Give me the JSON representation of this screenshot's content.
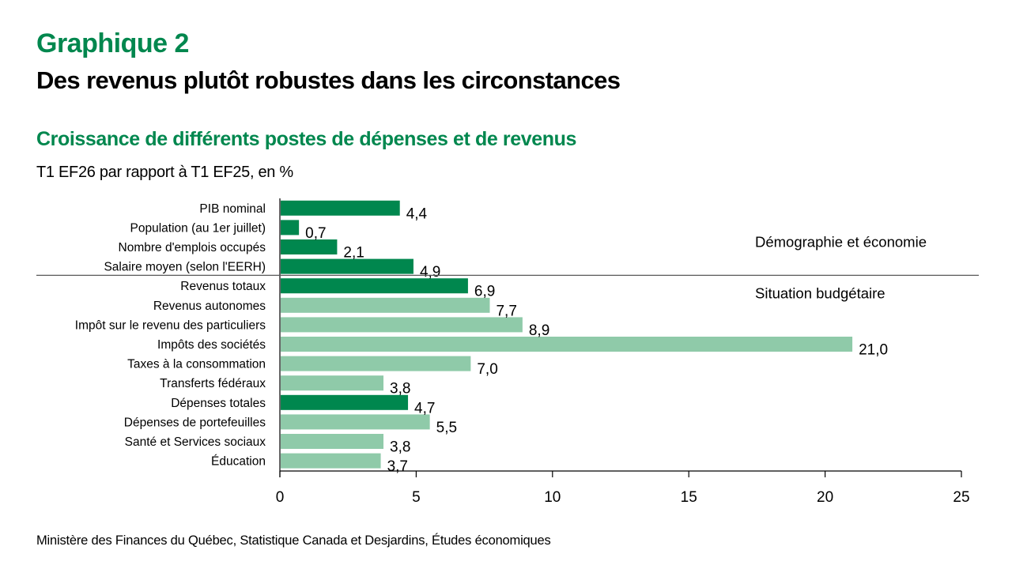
{
  "header": {
    "figure_label": "Graphique 2",
    "headline": "Des revenus plutôt robustes dans les circonstances"
  },
  "source": "Ministère des Finances du Québec, Statistique Canada et Desjardins, Études économiques",
  "colors": {
    "brand_green": "#00874e",
    "dark_bar": "#00874e",
    "light_bar": "#8fcaa9",
    "separator": "#595959",
    "axis": "#000000"
  },
  "chart_data": {
    "type": "bar",
    "orientation": "horizontal",
    "title": "Croissance de différents postes de dépenses et de revenus",
    "subtitle": "T1 EF26 par rapport à T1 EF25, en %",
    "xlabel": "",
    "ylabel": "",
    "xlim": [
      0,
      25
    ],
    "xticks": [
      0,
      5,
      10,
      15,
      20,
      25
    ],
    "grid": false,
    "decimal_separator": ",",
    "categories": [
      "PIB nominal",
      "Population (au 1er juillet)",
      "Nombre d'emplois occupés",
      "Salaire moyen (selon l'EERH)",
      "Revenus totaux",
      "Revenus autonomes",
      "Impôt sur le revenu des particuliers",
      "Impôts des sociétés",
      "Taxes à la consommation",
      "Transferts fédéraux",
      "Dépenses totales",
      "Dépenses de portefeuilles",
      "Santé et Services sociaux",
      "Éducation"
    ],
    "values": [
      4.4,
      0.7,
      2.1,
      4.9,
      6.9,
      7.7,
      8.9,
      21.0,
      7.0,
      3.8,
      4.7,
      5.5,
      3.8,
      3.7
    ],
    "data_labels": [
      "4,4",
      "0,7",
      "2,1",
      "4,9",
      "6,9",
      "7,7",
      "8,9",
      "21,0",
      "7,0",
      "3,8",
      "4,7",
      "5,5",
      "3,8",
      "3,7"
    ],
    "bar_style": [
      "dark",
      "dark",
      "dark",
      "dark",
      "dark",
      "light",
      "light",
      "light",
      "light",
      "light",
      "dark",
      "light",
      "light",
      "light"
    ],
    "groups": [
      {
        "name": "Démographie et économie",
        "start_index": 0,
        "end_index": 3
      },
      {
        "name": "Situation budgétaire",
        "start_index": 4,
        "end_index": 13
      }
    ]
  }
}
